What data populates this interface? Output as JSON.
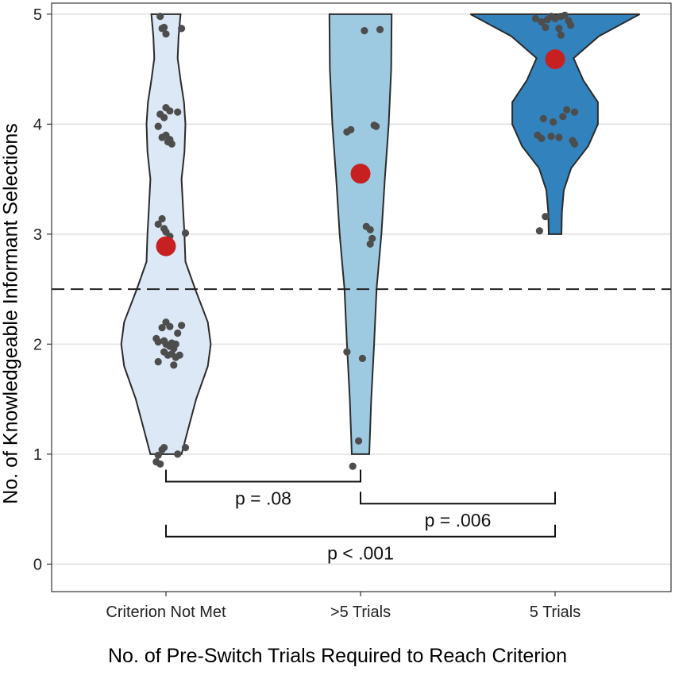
{
  "chart_data": {
    "type": "violin",
    "title": "",
    "xlabel": "No. of Pre-Switch Trials Required to Reach Criterion",
    "ylabel": "No. of Knowledgeable Informant Selections",
    "categories": [
      "Criterion Not Met",
      ">5 Trials",
      "5 Trials"
    ],
    "ylim": [
      -0.25,
      5.1
    ],
    "yticks": [
      0,
      1,
      2,
      3,
      4,
      5
    ],
    "grid": "horizontal",
    "reference_line": 2.5,
    "colors": {
      "fills": [
        "#dce8f5",
        "#9ecae1",
        "#3182bd"
      ],
      "outline": "#2b2b2b",
      "point": "#4d4d4d",
      "mean": "#c62021",
      "grid": "#e0e0e0"
    },
    "violins": [
      {
        "category": "Criterion Not Met",
        "min": 1,
        "max": 5,
        "profile": [
          [
            1,
            0.32
          ],
          [
            1.2,
            0.44
          ],
          [
            1.5,
            0.62
          ],
          [
            1.8,
            0.86
          ],
          [
            2.0,
            0.92
          ],
          [
            2.2,
            0.86
          ],
          [
            2.5,
            0.6
          ],
          [
            2.75,
            0.4
          ],
          [
            3.0,
            0.38
          ],
          [
            3.25,
            0.35
          ],
          [
            3.5,
            0.32
          ],
          [
            3.75,
            0.38
          ],
          [
            4.0,
            0.4
          ],
          [
            4.2,
            0.37
          ],
          [
            4.4,
            0.3
          ],
          [
            4.6,
            0.24
          ],
          [
            4.8,
            0.26
          ],
          [
            5,
            0.3
          ]
        ]
      },
      {
        "category": ">5 Trials",
        "min": 1,
        "max": 5,
        "profile": [
          [
            1,
            0.18
          ],
          [
            1.5,
            0.22
          ],
          [
            2.0,
            0.28
          ],
          [
            2.5,
            0.33
          ],
          [
            3.0,
            0.43
          ],
          [
            3.5,
            0.5
          ],
          [
            4.0,
            0.58
          ],
          [
            4.5,
            0.63
          ],
          [
            5,
            0.64
          ]
        ]
      },
      {
        "category": "5 Trials",
        "min": 3,
        "max": 5,
        "profile": [
          [
            3,
            0.13
          ],
          [
            3.2,
            0.14
          ],
          [
            3.4,
            0.18
          ],
          [
            3.6,
            0.33
          ],
          [
            3.8,
            0.68
          ],
          [
            4.0,
            0.88
          ],
          [
            4.2,
            0.88
          ],
          [
            4.4,
            0.58
          ],
          [
            4.6,
            0.38
          ],
          [
            4.8,
            0.9
          ],
          [
            5,
            1.74
          ]
        ]
      }
    ],
    "means": [
      2.89,
      3.55,
      4.59
    ],
    "points": [
      [
        [
          0.97,
          4.98
        ],
        [
          0.98,
          4.87
        ],
        [
          1.0,
          4.82
        ],
        [
          0.99,
          4.88
        ],
        [
          1.08,
          4.87
        ],
        [
          1.02,
          4.12
        ],
        [
          0.97,
          4.09
        ],
        [
          0.99,
          4.06
        ],
        [
          1.0,
          4.15
        ],
        [
          1.06,
          4.11
        ],
        [
          0.96,
          3.98
        ],
        [
          0.98,
          3.88
        ],
        [
          1.01,
          3.84
        ],
        [
          1.02,
          3.86
        ],
        [
          1.03,
          3.82
        ],
        [
          1.0,
          3.9
        ],
        [
          0.98,
          3.14
        ],
        [
          0.96,
          3.09
        ],
        [
          0.99,
          3.05
        ],
        [
          1.0,
          3.02
        ],
        [
          1.02,
          2.98
        ],
        [
          1.1,
          3.01
        ],
        [
          1.0,
          2.2
        ],
        [
          1.02,
          2.16
        ],
        [
          0.98,
          2.15
        ],
        [
          1.06,
          2.1
        ],
        [
          1.08,
          2.17
        ],
        [
          0.95,
          2.05
        ],
        [
          0.96,
          2.02
        ],
        [
          0.99,
          2.03
        ],
        [
          1.0,
          2.0
        ],
        [
          1.02,
          1.98
        ],
        [
          1.03,
          2.01
        ],
        [
          1.04,
          1.96
        ],
        [
          1.05,
          2.0
        ],
        [
          0.99,
          1.93
        ],
        [
          1.01,
          1.9
        ],
        [
          1.03,
          1.91
        ],
        [
          1.05,
          1.88
        ],
        [
          1.07,
          1.9
        ],
        [
          0.96,
          1.84
        ],
        [
          1.04,
          1.81
        ],
        [
          0.99,
          1.06
        ],
        [
          0.98,
          1.04
        ],
        [
          0.96,
          0.99
        ],
        [
          0.95,
          0.93
        ],
        [
          0.97,
          0.91
        ],
        [
          1.06,
          1.0
        ],
        [
          1.1,
          1.06
        ]
      ],
      [
        [
          2.02,
          4.85
        ],
        [
          2.1,
          4.86
        ],
        [
          1.95,
          3.95
        ],
        [
          1.93,
          3.93
        ],
        [
          2.07,
          3.99
        ],
        [
          2.08,
          3.98
        ],
        [
          2.03,
          3.07
        ],
        [
          2.05,
          3.04
        ],
        [
          2.06,
          2.96
        ],
        [
          2.05,
          2.91
        ],
        [
          1.93,
          1.93
        ],
        [
          2.01,
          1.87
        ],
        [
          1.99,
          1.12
        ],
        [
          1.96,
          0.89
        ]
      ],
      [
        [
          2.9,
          4.96
        ],
        [
          2.93,
          4.93
        ],
        [
          2.96,
          4.95
        ],
        [
          2.98,
          4.98
        ],
        [
          3.0,
          4.96
        ],
        [
          3.03,
          4.98
        ],
        [
          3.05,
          4.99
        ],
        [
          3.07,
          4.94
        ],
        [
          3.08,
          4.9
        ],
        [
          2.95,
          4.88
        ],
        [
          3.02,
          4.87
        ],
        [
          3.03,
          4.81
        ],
        [
          2.94,
          4.05
        ],
        [
          2.99,
          4.02
        ],
        [
          3.04,
          4.07
        ],
        [
          3.06,
          4.13
        ],
        [
          3.1,
          4.11
        ],
        [
          2.91,
          3.9
        ],
        [
          2.93,
          3.87
        ],
        [
          2.98,
          3.89
        ],
        [
          3.02,
          3.88
        ],
        [
          3.09,
          3.85
        ],
        [
          3.1,
          3.82
        ],
        [
          2.95,
          3.16
        ],
        [
          2.92,
          3.03
        ]
      ]
    ],
    "comparisons": [
      {
        "from": ">5 Trials",
        "to": "Criterion Not Met",
        "label": "p = .08",
        "y": 0.75
      },
      {
        "from": ">5 Trials",
        "to": "5 Trials",
        "label": "p = .006",
        "y": 0.55
      },
      {
        "from": "Criterion Not Met",
        "to": "5 Trials",
        "label": "p < .001",
        "y": 0.25
      }
    ]
  }
}
